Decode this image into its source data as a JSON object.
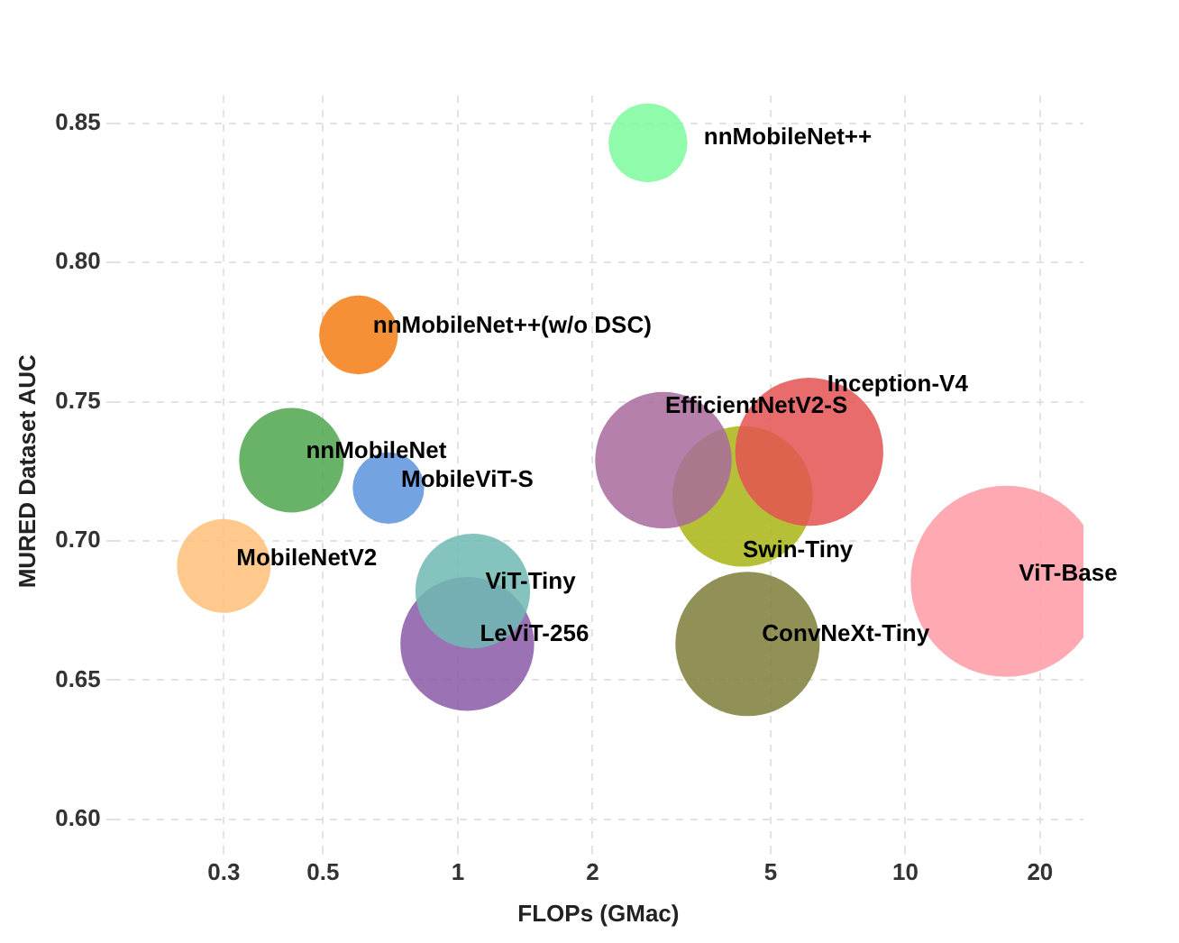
{
  "chart_data": {
    "type": "bubble",
    "xlabel": "FLOPs (GMac)",
    "ylabel": "MURED Dataset AUC",
    "log": "x",
    "grid": true,
    "legend": false,
    "xlim": [
      0.17,
      25
    ],
    "xticks": [
      0.3,
      0.5,
      1,
      2,
      5,
      10,
      20
    ],
    "ylim": [
      0.59,
      0.86
    ],
    "yticks": [
      {
        "value": 0.6,
        "label": "0.60"
      },
      0.65,
      {
        "value": 0.7,
        "label": "0.70"
      },
      0.75,
      {
        "value": 0.8,
        "label": "0.80"
      },
      0.85
    ],
    "series": [
      {
        "name": "nnMobileNet++",
        "color": "#7dfa9b",
        "x": [
          2.66
        ],
        "values": [
          0.843
        ],
        "sizes": [
          0.17
        ]
      },
      {
        "name": "nnMobileNet++(w/o DSC)",
        "color": "#f57c14",
        "x": [
          0.6
        ],
        "values": [
          0.774
        ],
        "sizes": [
          0.17
        ]
      },
      {
        "name": "nnMobileNet",
        "color": "#4ea64e",
        "x": [
          0.425
        ],
        "values": [
          0.729
        ],
        "sizes": [
          0.3
        ]
      },
      {
        "name": "MobileViT-S",
        "color": "#5b93da",
        "x": [
          0.7
        ],
        "values": [
          0.719
        ],
        "sizes": [
          0.14
        ]
      },
      {
        "name": "MobileNetV2",
        "color": "#ffbe78",
        "x": [
          0.3
        ],
        "values": [
          0.691
        ],
        "sizes": [
          0.24
        ]
      },
      {
        "name": "ViT-Tiny",
        "color": "#6fb9b3",
        "x": [
          1.08
        ],
        "values": [
          0.682
        ],
        "sizes": [
          0.36
        ]
      },
      {
        "name": "LeViT-256",
        "color": "#8a5aa8",
        "x": [
          1.05
        ],
        "values": [
          0.663
        ],
        "sizes": [
          0.49
        ]
      },
      {
        "name": "EfficientNetV2-S",
        "color": "#a86a9c",
        "x": [
          2.88
        ],
        "values": [
          0.729
        ],
        "sizes": [
          0.51
        ]
      },
      {
        "name": "Inception-V4",
        "color": "#e45252",
        "x": [
          6.1
        ],
        "values": [
          0.732
        ],
        "sizes": [
          0.6
        ]
      },
      {
        "name": "Swin-Tiny",
        "color": "#a8b514",
        "x": [
          4.33
        ],
        "values": [
          0.716
        ],
        "sizes": [
          0.54
        ]
      },
      {
        "name": "ConvNeXt-Tiny",
        "color": "#7d7d3a",
        "x": [
          4.44
        ],
        "values": [
          0.663
        ],
        "sizes": [
          0.57
        ]
      },
      {
        "name": "ViT-Base",
        "color": "#ff9aa5",
        "x": [
          16.8
        ],
        "values": [
          0.6855
        ],
        "sizes": [
          1
        ]
      }
    ]
  }
}
